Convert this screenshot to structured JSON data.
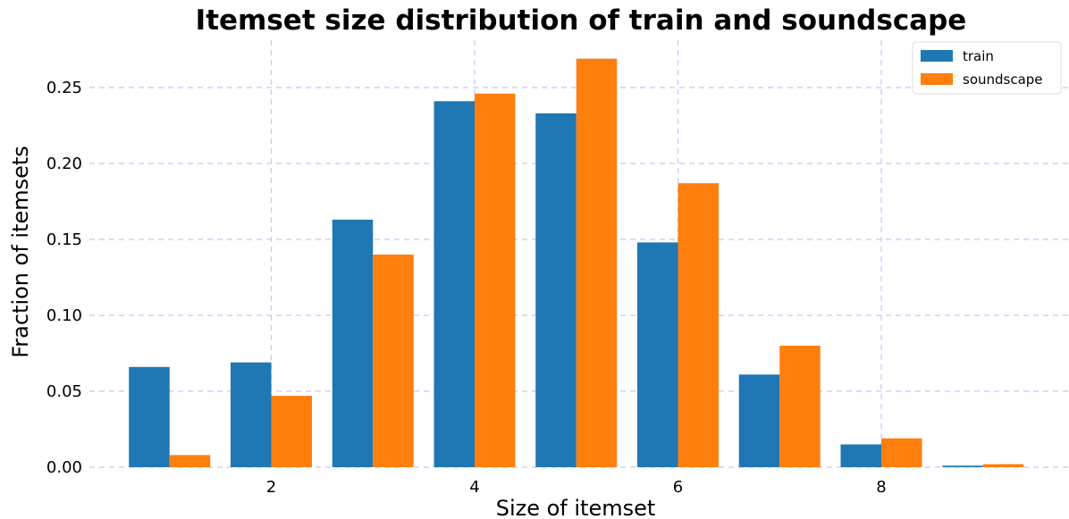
{
  "chart_data": {
    "type": "bar",
    "title": "Itemset size distribution of train and soundscape",
    "xlabel": "Size of itemset",
    "ylabel": "Fraction of itemsets",
    "categories": [
      1,
      2,
      3,
      4,
      5,
      6,
      7,
      8,
      9
    ],
    "xticks": [
      "2",
      "4",
      "6",
      "8"
    ],
    "yticks": [
      "0.00",
      "0.05",
      "0.10",
      "0.15",
      "0.20",
      "0.25"
    ],
    "ylim": [
      0,
      0.28
    ],
    "grid": true,
    "legend_position": "top-right",
    "series": [
      {
        "name": "train",
        "color": "#1f77b4",
        "values": [
          0.066,
          0.069,
          0.163,
          0.241,
          0.233,
          0.148,
          0.061,
          0.015,
          0.001
        ]
      },
      {
        "name": "soundscape",
        "color": "#ff7f0e",
        "values": [
          0.008,
          0.047,
          0.14,
          0.246,
          0.269,
          0.187,
          0.08,
          0.019,
          0.002
        ]
      }
    ]
  }
}
